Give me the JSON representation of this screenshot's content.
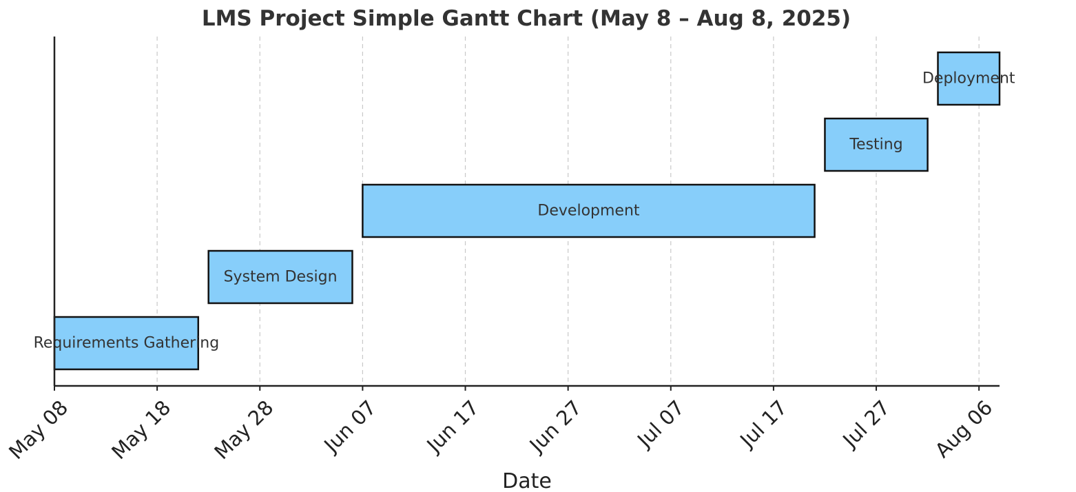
{
  "chart_data": {
    "type": "bar",
    "orientation": "horizontal-gantt",
    "title": "LMS Project Simple Gantt Chart (May 8 – Aug 8, 2025)",
    "xlabel": "Date",
    "ylabel": "",
    "xlim": [
      "2025-05-08",
      "2025-08-08"
    ],
    "x_ticks": [
      "May 08",
      "May 18",
      "May 28",
      "Jun 07",
      "Jun 17",
      "Jun 27",
      "Jul 07",
      "Jul 17",
      "Jul 27",
      "Aug 06"
    ],
    "x_tick_dates": [
      "2025-05-08",
      "2025-05-18",
      "2025-05-28",
      "2025-06-07",
      "2025-06-17",
      "2025-06-27",
      "2025-07-07",
      "2025-07-17",
      "2025-07-27",
      "2025-08-06"
    ],
    "grid": "vertical-dashed",
    "bar_color": "#87CEFA",
    "tasks": [
      {
        "name": "Requirements Gathering",
        "start": "2025-05-08",
        "end": "2025-05-22"
      },
      {
        "name": "System Design",
        "start": "2025-05-23",
        "end": "2025-06-06"
      },
      {
        "name": "Development",
        "start": "2025-06-07",
        "end": "2025-07-21"
      },
      {
        "name": "Testing",
        "start": "2025-07-22",
        "end": "2025-08-01"
      },
      {
        "name": "Deployment",
        "start": "2025-08-02",
        "end": "2025-08-08"
      }
    ]
  }
}
